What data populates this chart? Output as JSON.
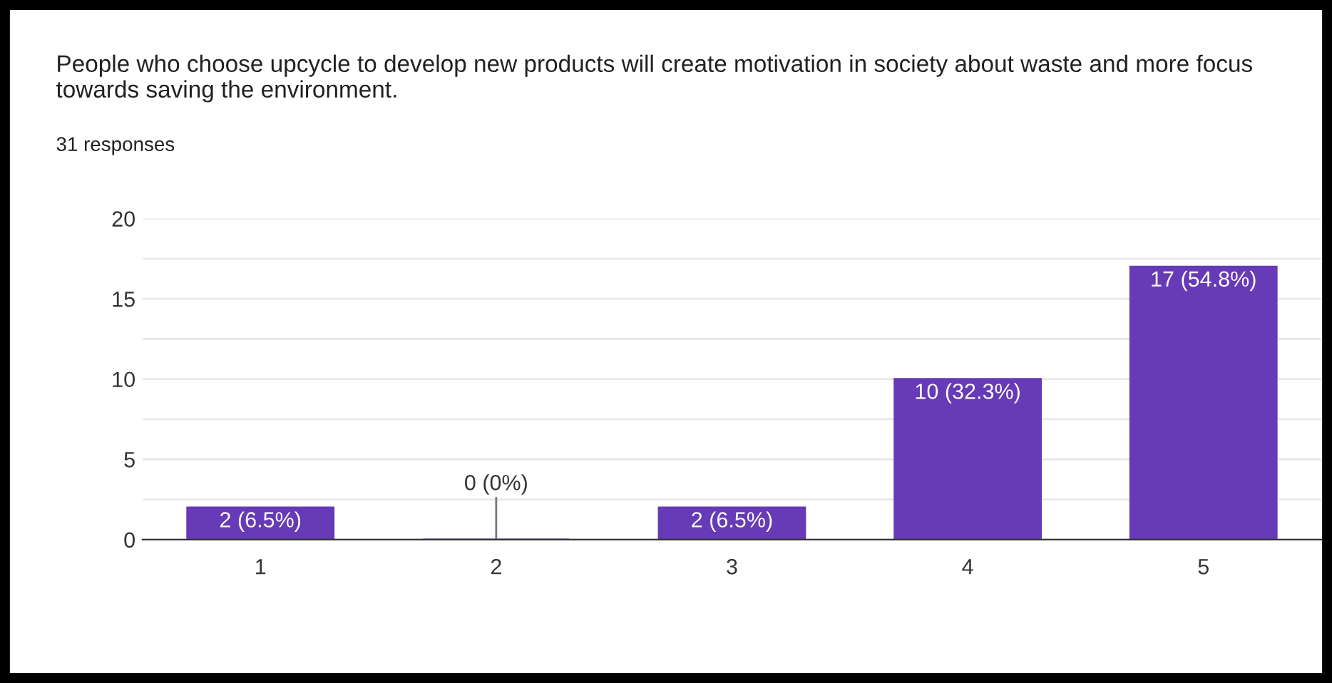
{
  "chart_data": {
    "type": "bar",
    "title": "People who choose upcycle to develop new products will create motivation in society about waste and more focus towards saving the environment.",
    "subtitle": "31 responses",
    "categories": [
      "1",
      "2",
      "3",
      "4",
      "5"
    ],
    "values": [
      2,
      0,
      2,
      10,
      17
    ],
    "color": "#673ab7",
    "value_labels": [
      "2 (6.5%)",
      "0 (0%)",
      "2 (6.5%)",
      "10 (32.3%)",
      "17 (54.8%)"
    ],
    "ylim": [
      0,
      20
    ],
    "yticks": [
      0,
      {
        "value": 2.5,
        "label": null
      },
      5,
      {
        "value": 7.5,
        "label": null
      },
      10,
      {
        "value": 12.5,
        "label": null
      },
      15,
      {
        "value": 17.5,
        "label": null
      },
      20
    ],
    "grid": "y"
  }
}
